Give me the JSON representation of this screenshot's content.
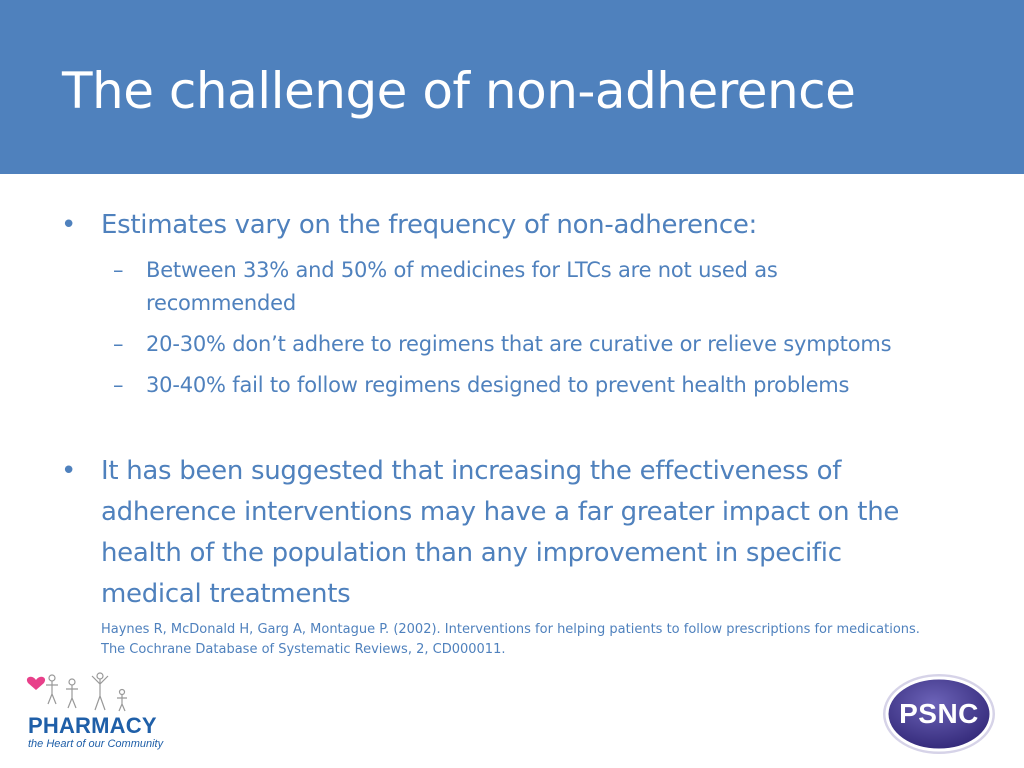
{
  "slide": {
    "title": "The challenge of non-adherence"
  },
  "content": {
    "bullets": [
      {
        "text": "Estimates vary on the frequency of non-adherence:",
        "sub": [
          {
            "line1": "Between 33% and 50% of medicines for LTCs are not used as",
            "line2": "recommended"
          },
          {
            "line1": "20-30% don’t adhere to regimens that are curative or relieve symptoms"
          },
          {
            "line1": "30-40% fail to follow regimens designed to prevent health problems"
          }
        ]
      },
      {
        "lines": [
          "It has been suggested that increasing the effectiveness of",
          "adherence interventions may have a far greater impact on the",
          "health of the population than any improvement in specific",
          "medical treatments"
        ]
      }
    ],
    "bullet_mark": "•",
    "sub_mark": "–",
    "citation": {
      "line1": "Haynes R, McDonald H, Garg A, Montague P. (2002). Interventions for helping patients to follow prescriptions for medications.",
      "line2": "The Cochrane Database of Systematic Reviews, 2, CD000011."
    }
  },
  "logos": {
    "pharmacy": {
      "word": "PHARMACY",
      "tagline": "the Heart of our Community"
    },
    "psnc": {
      "text": "PSNC"
    }
  },
  "colors": {
    "title_bar": "#4f81bd",
    "text": "#4f81bd",
    "pharmacy_blue": "#1f5fa8",
    "psnc_purple": "#4a3f8f"
  }
}
